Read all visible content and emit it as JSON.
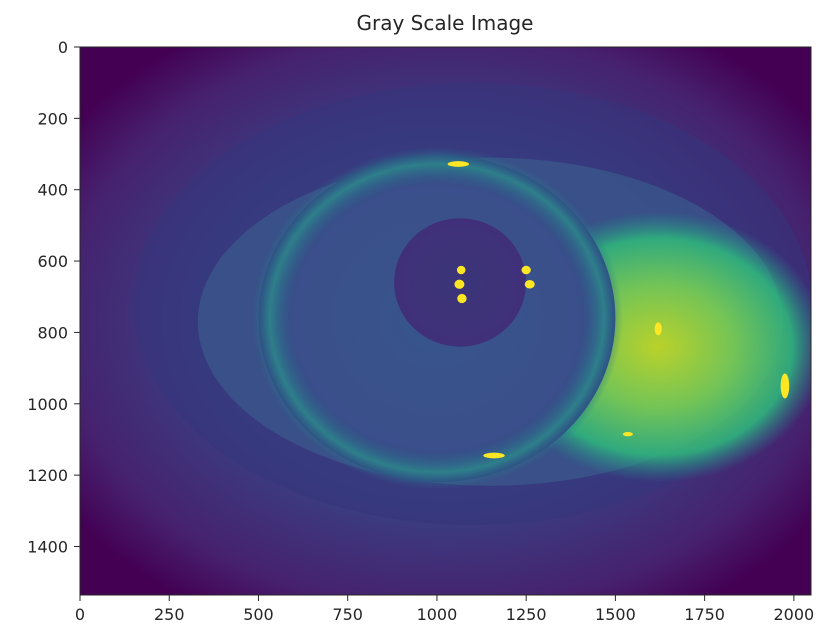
{
  "chart_data": {
    "type": "heatmap",
    "title": "Gray Scale Image",
    "xlabel": "",
    "ylabel": "",
    "colormap": "viridis",
    "image_width": 2048,
    "image_height": 1536,
    "xlim": [
      0,
      2048
    ],
    "ylim": [
      1536,
      0
    ],
    "x_ticks": [
      0,
      250,
      500,
      750,
      1000,
      1250,
      1500,
      1750,
      2000
    ],
    "x_tick_labels": [
      "0",
      "250",
      "500",
      "750",
      "1000",
      "1250",
      "1500",
      "1750",
      "2000"
    ],
    "y_ticks": [
      0,
      200,
      400,
      600,
      800,
      1000,
      1200,
      1400
    ],
    "y_tick_labels": [
      "0",
      "200",
      "400",
      "600",
      "800",
      "1000",
      "1200",
      "1400"
    ],
    "grid": false,
    "legend": "none",
    "colors": {
      "darkest": "#440154",
      "dark": "#3b2f6f",
      "mid": "#3a5a8c",
      "teal": "#21918c",
      "green": "#5ec962",
      "bright": "#fde725"
    }
  }
}
